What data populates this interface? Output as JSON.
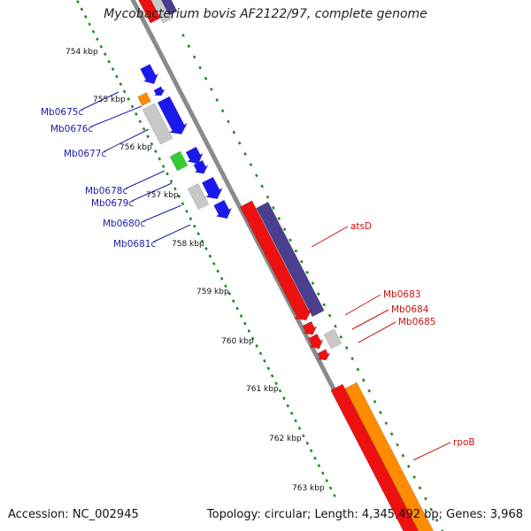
{
  "title": "Mycobacterium bovis AF2122/97, complete genome",
  "footer": {
    "accession": "Accession: NC_002945",
    "summary": "Topology: circular; Length: 4,345,492 bp; Genes: 3,968"
  },
  "colors": {
    "backbone": "#8a8a8a",
    "tick": "#1a8a1a",
    "gene_blue": "#1a1aee",
    "gene_orange": "#ff8c00",
    "gene_gray": "#c8c8c8",
    "gene_green": "#33cc33",
    "gene_red": "#ee1111",
    "gene_purple": "#4b3f8f",
    "label_blue": "#1a1aaa",
    "label_red": "#cc1111"
  },
  "kbp_ticks": [
    "754 kbp",
    "755 kbp",
    "756 kbp",
    "757 kbp",
    "758 kbp",
    "759 kbp",
    "760 kbp",
    "761 kbp",
    "762 kbp",
    "763 kbp"
  ],
  "left_gene_labels": [
    "Mb0675c",
    "Mb0676c",
    "Mb0677c",
    "Mb0678c",
    "Mb0679c",
    "Mb0680c",
    "Mb0681c"
  ],
  "right_gene_labels": [
    "atsD",
    "Mb0683",
    "Mb0684",
    "Mb0685",
    "rpoB"
  ]
}
